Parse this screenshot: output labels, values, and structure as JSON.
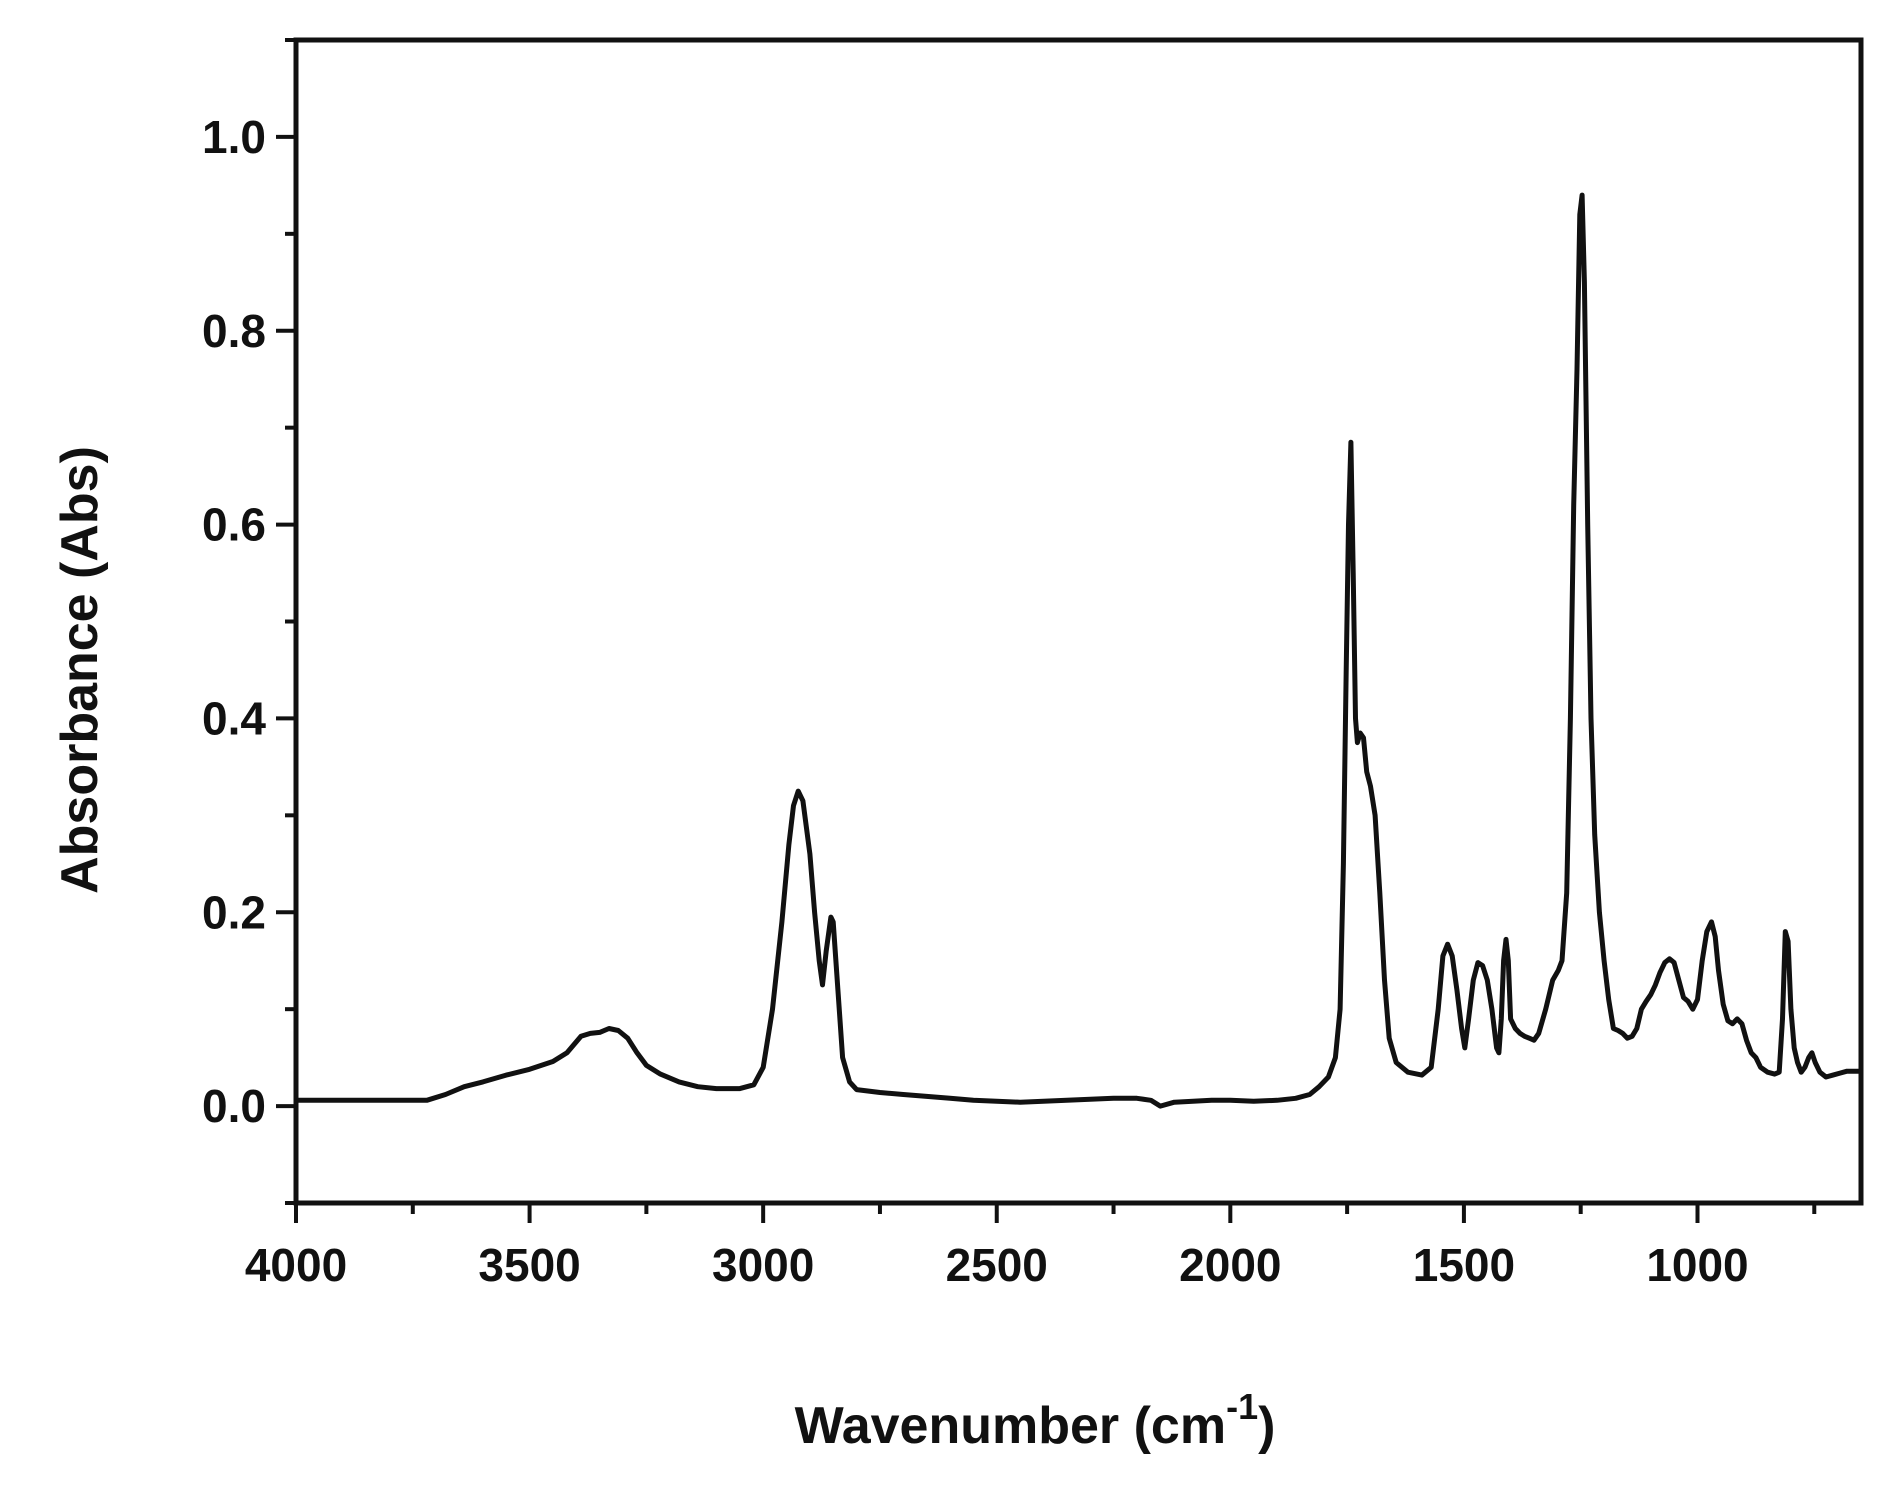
{
  "chart_data": {
    "type": "line",
    "title": "",
    "xlabel": "Wavenumber (cm",
    "xlabel_superscript": "-1",
    "xlabel_suffix": ")",
    "ylabel": "Absorbance (Abs)",
    "xlim": [
      4000,
      650
    ],
    "ylim": [
      -0.1,
      1.1
    ],
    "x_reversed": true,
    "grid": false,
    "legend": "none",
    "line_color": "#111111",
    "x_ticks": [
      {
        "value": 4000,
        "label": "4000"
      },
      {
        "value": 3500,
        "label": "3500"
      },
      {
        "value": 3000,
        "label": "3000"
      },
      {
        "value": 2500,
        "label": "2500"
      },
      {
        "value": 2000,
        "label": "2000"
      },
      {
        "value": 1500,
        "label": "1500"
      },
      {
        "value": 1000,
        "label": "1000"
      }
    ],
    "y_ticks": [
      {
        "value": 0.0,
        "label": "0.0"
      },
      {
        "value": 0.2,
        "label": "0.2"
      },
      {
        "value": 0.4,
        "label": "0.4"
      },
      {
        "value": 0.6,
        "label": "0.6"
      },
      {
        "value": 0.8,
        "label": "0.8"
      },
      {
        "value": 1.0,
        "label": "1.0"
      }
    ],
    "series": [
      {
        "points": [
          [
            4000,
            0.006
          ],
          [
            3900,
            0.006
          ],
          [
            3800,
            0.006
          ],
          [
            3720,
            0.006
          ],
          [
            3680,
            0.012
          ],
          [
            3640,
            0.02
          ],
          [
            3600,
            0.025
          ],
          [
            3550,
            0.032
          ],
          [
            3500,
            0.038
          ],
          [
            3450,
            0.046
          ],
          [
            3420,
            0.055
          ],
          [
            3390,
            0.072
          ],
          [
            3370,
            0.075
          ],
          [
            3350,
            0.076
          ],
          [
            3330,
            0.08
          ],
          [
            3310,
            0.078
          ],
          [
            3290,
            0.07
          ],
          [
            3270,
            0.055
          ],
          [
            3250,
            0.042
          ],
          [
            3220,
            0.033
          ],
          [
            3180,
            0.025
          ],
          [
            3140,
            0.02
          ],
          [
            3100,
            0.018
          ],
          [
            3050,
            0.018
          ],
          [
            3020,
            0.022
          ],
          [
            3000,
            0.04
          ],
          [
            2980,
            0.1
          ],
          [
            2960,
            0.19
          ],
          [
            2945,
            0.27
          ],
          [
            2935,
            0.31
          ],
          [
            2925,
            0.325
          ],
          [
            2915,
            0.315
          ],
          [
            2900,
            0.26
          ],
          [
            2890,
            0.2
          ],
          [
            2880,
            0.15
          ],
          [
            2873,
            0.125
          ],
          [
            2865,
            0.16
          ],
          [
            2855,
            0.195
          ],
          [
            2850,
            0.19
          ],
          [
            2840,
            0.12
          ],
          [
            2830,
            0.05
          ],
          [
            2815,
            0.025
          ],
          [
            2800,
            0.017
          ],
          [
            2750,
            0.014
          ],
          [
            2700,
            0.012
          ],
          [
            2650,
            0.01
          ],
          [
            2600,
            0.008
          ],
          [
            2550,
            0.006
          ],
          [
            2500,
            0.005
          ],
          [
            2450,
            0.004
          ],
          [
            2400,
            0.005
          ],
          [
            2350,
            0.006
          ],
          [
            2300,
            0.007
          ],
          [
            2250,
            0.008
          ],
          [
            2200,
            0.008
          ],
          [
            2170,
            0.006
          ],
          [
            2150,
            0.0
          ],
          [
            2120,
            0.004
          ],
          [
            2080,
            0.005
          ],
          [
            2040,
            0.006
          ],
          [
            2000,
            0.006
          ],
          [
            1950,
            0.005
          ],
          [
            1900,
            0.006
          ],
          [
            1860,
            0.008
          ],
          [
            1830,
            0.012
          ],
          [
            1810,
            0.02
          ],
          [
            1790,
            0.03
          ],
          [
            1775,
            0.05
          ],
          [
            1765,
            0.1
          ],
          [
            1758,
            0.25
          ],
          [
            1752,
            0.45
          ],
          [
            1747,
            0.6
          ],
          [
            1742,
            0.685
          ],
          [
            1737,
            0.55
          ],
          [
            1732,
            0.4
          ],
          [
            1728,
            0.375
          ],
          [
            1722,
            0.385
          ],
          [
            1715,
            0.38
          ],
          [
            1708,
            0.345
          ],
          [
            1700,
            0.33
          ],
          [
            1690,
            0.3
          ],
          [
            1680,
            0.22
          ],
          [
            1670,
            0.13
          ],
          [
            1660,
            0.07
          ],
          [
            1645,
            0.045
          ],
          [
            1620,
            0.035
          ],
          [
            1590,
            0.032
          ],
          [
            1570,
            0.04
          ],
          [
            1555,
            0.1
          ],
          [
            1545,
            0.155
          ],
          [
            1535,
            0.167
          ],
          [
            1525,
            0.155
          ],
          [
            1515,
            0.12
          ],
          [
            1505,
            0.08
          ],
          [
            1498,
            0.06
          ],
          [
            1490,
            0.09
          ],
          [
            1480,
            0.13
          ],
          [
            1470,
            0.148
          ],
          [
            1460,
            0.145
          ],
          [
            1450,
            0.13
          ],
          [
            1440,
            0.1
          ],
          [
            1430,
            0.06
          ],
          [
            1425,
            0.055
          ],
          [
            1420,
            0.09
          ],
          [
            1415,
            0.15
          ],
          [
            1410,
            0.172
          ],
          [
            1405,
            0.15
          ],
          [
            1400,
            0.09
          ],
          [
            1390,
            0.08
          ],
          [
            1380,
            0.075
          ],
          [
            1370,
            0.072
          ],
          [
            1360,
            0.07
          ],
          [
            1350,
            0.068
          ],
          [
            1340,
            0.075
          ],
          [
            1325,
            0.1
          ],
          [
            1310,
            0.13
          ],
          [
            1298,
            0.14
          ],
          [
            1290,
            0.15
          ],
          [
            1280,
            0.22
          ],
          [
            1272,
            0.4
          ],
          [
            1265,
            0.62
          ],
          [
            1258,
            0.76
          ],
          [
            1252,
            0.92
          ],
          [
            1247,
            0.94
          ],
          [
            1242,
            0.85
          ],
          [
            1235,
            0.6
          ],
          [
            1228,
            0.4
          ],
          [
            1220,
            0.28
          ],
          [
            1210,
            0.2
          ],
          [
            1200,
            0.15
          ],
          [
            1190,
            0.11
          ],
          [
            1180,
            0.08
          ],
          [
            1170,
            0.078
          ],
          [
            1160,
            0.075
          ],
          [
            1150,
            0.07
          ],
          [
            1140,
            0.072
          ],
          [
            1130,
            0.08
          ],
          [
            1120,
            0.1
          ],
          [
            1110,
            0.108
          ],
          [
            1100,
            0.115
          ],
          [
            1090,
            0.125
          ],
          [
            1080,
            0.138
          ],
          [
            1070,
            0.148
          ],
          [
            1060,
            0.152
          ],
          [
            1050,
            0.148
          ],
          [
            1040,
            0.13
          ],
          [
            1030,
            0.112
          ],
          [
            1020,
            0.108
          ],
          [
            1010,
            0.1
          ],
          [
            1000,
            0.11
          ],
          [
            990,
            0.15
          ],
          [
            980,
            0.18
          ],
          [
            970,
            0.19
          ],
          [
            962,
            0.175
          ],
          [
            955,
            0.14
          ],
          [
            945,
            0.105
          ],
          [
            935,
            0.088
          ],
          [
            925,
            0.085
          ],
          [
            915,
            0.09
          ],
          [
            905,
            0.085
          ],
          [
            895,
            0.068
          ],
          [
            885,
            0.055
          ],
          [
            875,
            0.05
          ],
          [
            865,
            0.04
          ],
          [
            850,
            0.035
          ],
          [
            835,
            0.033
          ],
          [
            825,
            0.035
          ],
          [
            818,
            0.09
          ],
          [
            812,
            0.18
          ],
          [
            806,
            0.17
          ],
          [
            800,
            0.1
          ],
          [
            793,
            0.06
          ],
          [
            786,
            0.045
          ],
          [
            778,
            0.035
          ],
          [
            770,
            0.04
          ],
          [
            762,
            0.05
          ],
          [
            755,
            0.055
          ],
          [
            748,
            0.045
          ],
          [
            738,
            0.035
          ],
          [
            725,
            0.03
          ],
          [
            710,
            0.032
          ],
          [
            695,
            0.034
          ],
          [
            680,
            0.036
          ],
          [
            665,
            0.036
          ],
          [
            655,
            0.036
          ]
        ]
      }
    ]
  }
}
